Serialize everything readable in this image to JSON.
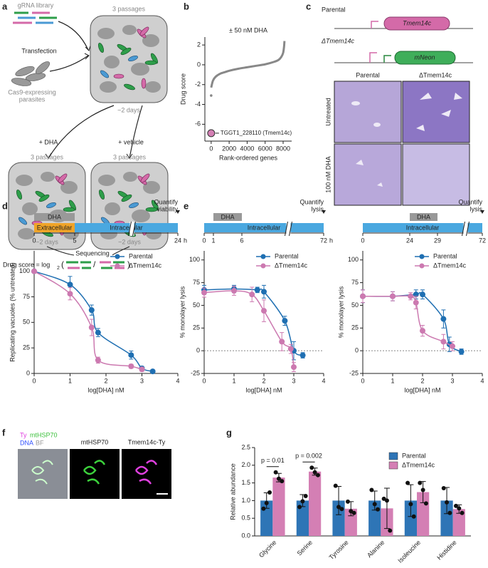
{
  "panel_labels": [
    "a",
    "b",
    "c",
    "d",
    "e",
    "f",
    "g"
  ],
  "screen_diagram": {
    "library": "gRNA library",
    "transfection": "Transfection",
    "cas9": [
      "Cas9-expressing",
      "parasites"
    ],
    "passages": "3 passages",
    "days": "~2 days",
    "dha": "+ DHA",
    "vehicle": "+ vehicle",
    "sequencing": "Sequencing",
    "formula": {
      "prefix": "Drug score = log",
      "base": "2",
      "open": "(",
      "divide": "/",
      "close": ")"
    }
  },
  "construct_diagram": {
    "parental": "Parental",
    "gene": "Tmem14c",
    "knockout": "ΔTmem14c",
    "reporter": "mNeon",
    "columns": [
      "Parental",
      "ΔTmem14c"
    ],
    "rows": [
      "Untreated",
      "100 nM DHA"
    ]
  },
  "microscopy": {
    "channels": [
      {
        "text": "Ty",
        "color": "#e040e0"
      },
      {
        "text": "mtHSP70",
        "color": "#3cc03c"
      },
      {
        "text": "DNA",
        "color": "#3050ff"
      },
      {
        "text": "BF",
        "color": "#999999"
      }
    ],
    "panels": [
      "mtHSP70",
      "Tmem14c-Ty"
    ]
  },
  "timelines": [
    {
      "ticks": [
        0,
        5,
        24
      ],
      "unit": "h",
      "drug": {
        "label": "DHA",
        "from": 0,
        "to": 5,
        "color": "#999999"
      },
      "phases": [
        {
          "label": "Extracellular",
          "from": 0,
          "to": 5,
          "color": "#f0a428"
        },
        {
          "label": "Intracellular",
          "from": 5,
          "to": 24,
          "color": "#4aa8e0"
        }
      ],
      "end": [
        "Quantify",
        "viability"
      ]
    },
    {
      "ticks": [
        0,
        1,
        6,
        72
      ],
      "unit": "h",
      "drug": {
        "label": "DHA",
        "from": 1,
        "to": 6,
        "color": "#999999"
      },
      "phases": [
        {
          "label": "Intracellular",
          "from": 0,
          "to": 72,
          "color": "#4aa8e0"
        }
      ],
      "end": [
        "Quantify",
        "lysis"
      ]
    },
    {
      "ticks": [
        0,
        24,
        29,
        72
      ],
      "unit": "h",
      "drug": {
        "label": "DHA",
        "from": 24,
        "to": 29,
        "color": "#999999"
      },
      "phases": [
        {
          "label": "Intracellular",
          "from": 0,
          "to": 72,
          "color": "#4aa8e0"
        }
      ],
      "end": [
        "Quantify",
        "lysis"
      ]
    }
  ],
  "chart_data": [
    {
      "type": "line",
      "title": "± 50 nM DHA",
      "x_label": "Rank-ordered genes",
      "y_label": "Drug score",
      "xlim": [
        -700,
        8950
      ],
      "ylim": [
        -7.7,
        2.8
      ],
      "xticks": [
        0,
        2000,
        4000,
        6000,
        8000
      ],
      "yticks": [
        -6,
        -4,
        -2,
        0,
        2
      ],
      "series": [
        {
          "color": "#888888",
          "style": "line",
          "x": [
            0,
            200,
            500,
            1000,
            1500,
            2000,
            3000,
            4000,
            5000,
            6000,
            7000,
            7500,
            7800,
            8000,
            8100,
            8150
          ],
          "values": [
            -2.3,
            -1.6,
            -1.2,
            -0.9,
            -0.75,
            -0.6,
            -0.4,
            -0.25,
            -0.1,
            0.05,
            0.3,
            0.5,
            0.8,
            1.2,
            1.8,
            2.4
          ]
        },
        {
          "color": "#888888",
          "style": "points",
          "x": [
            0
          ],
          "values": [
            -3.1
          ]
        },
        {
          "color": "#d47fb4",
          "style": "points",
          "label": "TGGT1_228110 (Tmem14c)",
          "x": [
            0
          ],
          "values": [
            -6.9
          ]
        }
      ]
    },
    {
      "type": "line",
      "x_label": "log[DHA] nM",
      "y_label": "Replicating vacuoles (% untreated)",
      "xlim": [
        0,
        4
      ],
      "ylim": [
        0,
        120
      ],
      "xticks": [
        0,
        1,
        2,
        3,
        4
      ],
      "yticks": [
        0,
        25,
        50,
        75,
        100
      ],
      "legend": "upper right",
      "series": [
        {
          "name": "Parental",
          "color": "#1f6fb2",
          "style": "line+points",
          "x": [
            0,
            1,
            1.6,
            1.78,
            2.7,
            3,
            3.3
          ],
          "values": [
            100,
            87,
            62,
            40,
            18,
            5,
            2
          ],
          "errors": [
            0,
            8,
            5,
            4,
            4,
            2,
            1
          ]
        },
        {
          "name": "ΔTmem14c",
          "color": "#cc79b0",
          "style": "line+points",
          "x": [
            0,
            1,
            1.6,
            1.78,
            2.7,
            3
          ],
          "values": [
            100,
            78,
            45,
            13,
            7,
            4
          ],
          "errors": [
            0,
            6,
            8,
            3,
            2,
            2
          ]
        }
      ]
    },
    {
      "type": "line",
      "x_label": "log[DHA] nM",
      "y_label": "% monolayer lysis",
      "xlim": [
        0,
        4
      ],
      "ylim": [
        -25,
        110
      ],
      "xticks": [
        0,
        1,
        2,
        3,
        4
      ],
      "yticks": [
        -25,
        0,
        25,
        50,
        75,
        100
      ],
      "hline": 0,
      "legend": "upper right",
      "series": [
        {
          "name": "Parental",
          "color": "#1f6fb2",
          "style": "line+points",
          "x": [
            0,
            1,
            1.78,
            2,
            2.7,
            3,
            3.3
          ],
          "values": [
            67,
            68,
            67,
            65,
            33,
            0,
            -5
          ],
          "errors": [
            5,
            4,
            3,
            7,
            5,
            10,
            3
          ]
        },
        {
          "name": "ΔTmem14c",
          "color": "#cc79b0",
          "style": "line+points",
          "x": [
            0,
            1,
            1.6,
            2,
            2.6,
            2.9,
            3
          ],
          "values": [
            64,
            66,
            62,
            44,
            10,
            2,
            -18
          ],
          "errors": [
            5,
            5,
            8,
            12,
            10,
            5,
            5
          ]
        }
      ]
    },
    {
      "type": "line",
      "x_label": "log[DHA] nM",
      "y_label": "% monolayer lysis",
      "xlim": [
        0,
        4
      ],
      "ylim": [
        -25,
        110
      ],
      "xticks": [
        0,
        1,
        2,
        3,
        4
      ],
      "yticks": [
        -25,
        0,
        25,
        50,
        75,
        100
      ],
      "hline": 0,
      "legend": "upper right",
      "series": [
        {
          "name": "Parental",
          "color": "#1f6fb2",
          "style": "line+points",
          "x": [
            0,
            1,
            1.78,
            2,
            2.7,
            2.9,
            3.3
          ],
          "values": [
            60,
            60,
            62,
            62,
            35,
            7,
            -1
          ],
          "errors": [
            7,
            5,
            5,
            5,
            10,
            8,
            3
          ]
        },
        {
          "name": "ΔTmem14c",
          "color": "#cc79b0",
          "style": "line+points",
          "x": [
            0,
            1,
            1.6,
            1.78,
            2,
            2.7,
            3
          ],
          "values": [
            60,
            60,
            60,
            53,
            22,
            10,
            5
          ],
          "errors": [
            7,
            5,
            4,
            7,
            6,
            8,
            5
          ]
        }
      ]
    },
    {
      "type": "bar",
      "y_label": "Relative abundance",
      "categories": [
        "Glycine",
        "Serine",
        "Tyrosine",
        "Alanine",
        "Isoleucine",
        "Histidine"
      ],
      "ylim": [
        0,
        2.5
      ],
      "yticks": [
        {
          "value": 0,
          "label": "0.0"
        },
        0.5,
        {
          "value": 1,
          "label": "1.0"
        },
        1.5,
        {
          "value": 2,
          "label": "2.0"
        },
        2.5
      ],
      "legend": "upper right",
      "series": [
        {
          "name": "Parental",
          "color": "#2e75b6",
          "values": [
            1,
            1,
            1,
            1,
            1,
            1
          ],
          "errors": [
            0.22,
            0.17,
            0.4,
            0.27,
            0.45,
            0.37
          ],
          "points": [
            [
              0.77,
              0.93,
              1.23
            ],
            [
              0.82,
              0.98,
              1.13
            ],
            [
              1.42,
              0.82,
              0.76
            ],
            [
              1.3,
              0.9,
              0.75
            ],
            [
              1.5,
              0.9,
              0.55
            ],
            [
              1.35,
              0.95,
              0.65
            ]
          ]
        },
        {
          "name": "ΔTmem14c",
          "color": "#d47fb4",
          "values": [
            1.65,
            1.82,
            0.77,
            0.78,
            1.24,
            0.76
          ],
          "errors": [
            0.12,
            0.1,
            0.2,
            0.57,
            0.3,
            0.12
          ],
          "points": [
            [
              1.8,
              1.62,
              1.55
            ],
            [
              1.93,
              1.8,
              1.72
            ],
            [
              0.97,
              0.7,
              0.65
            ],
            [
              1.05,
              1.0,
              0.15
            ],
            [
              1.5,
              1.3,
              0.92
            ],
            [
              0.85,
              0.78,
              0.65
            ]
          ]
        }
      ],
      "annotations": [
        {
          "text": "p = 0.01",
          "category": 0
        },
        {
          "text": "p = 0.002",
          "category": 1
        }
      ]
    }
  ]
}
